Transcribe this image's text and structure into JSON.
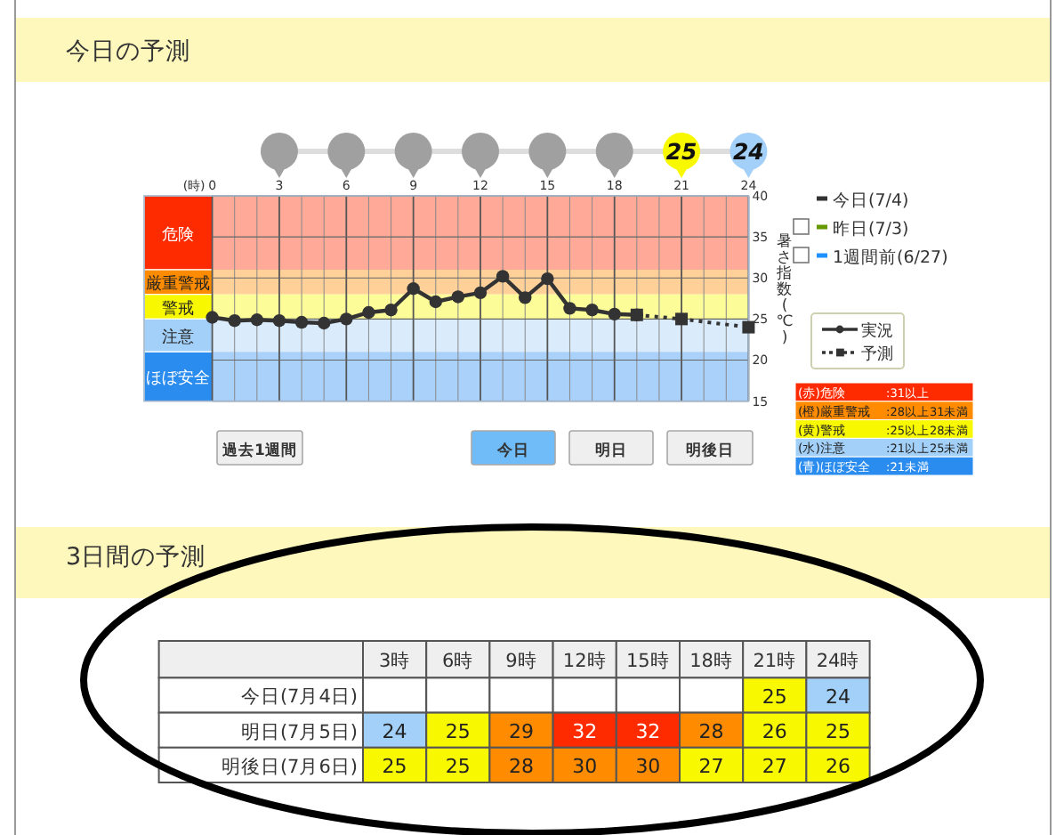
{
  "chart_data": [
    {
      "type": "line",
      "title": "今日の予測",
      "xlabel": "(時)",
      "ylabel": "暑さ指数(℃)",
      "x": [
        0,
        1,
        2,
        3,
        4,
        5,
        6,
        7,
        8,
        9,
        10,
        11,
        12,
        13,
        14,
        15,
        16,
        17,
        18,
        19
      ],
      "series": [
        {
          "name": "実況",
          "color": "#333333",
          "values": [
            25.2,
            24.8,
            24.9,
            24.8,
            24.6,
            24.5,
            25.0,
            25.8,
            26.1,
            28.7,
            27.1,
            27.7,
            28.2,
            30.2,
            27.6,
            29.9,
            26.3,
            26.1,
            25.6,
            25.5
          ],
          "marker": "circle",
          "line_style": "solid"
        },
        {
          "name": "予測",
          "color": "#333333",
          "x": [
            19,
            21,
            24
          ],
          "values": [
            25.5,
            25,
            24
          ],
          "marker": "square",
          "line_style": "dotted"
        },
        {
          "name": "昨日(7/3)",
          "color": "#669900",
          "values": [
            null,
            null,
            null,
            null,
            null,
            null,
            null,
            null,
            null,
            null,
            null,
            null,
            null,
            null,
            null,
            null,
            null,
            null,
            null,
            null
          ]
        },
        {
          "name": "1週間前(6/27)",
          "color": "#1e90ff",
          "values": [
            null,
            null,
            null,
            null,
            null,
            null,
            null,
            null,
            null,
            null,
            null,
            null,
            null,
            null,
            null,
            null,
            null,
            null,
            null,
            null
          ]
        }
      ],
      "xlim": [
        0,
        24
      ],
      "xticks": [
        0,
        {
          "value": 1,
          "label": null
        },
        {
          "value": 2,
          "label": null
        },
        3,
        {
          "value": 4,
          "label": null
        },
        {
          "value": 5,
          "label": null
        },
        6,
        {
          "value": 7,
          "label": null
        },
        {
          "value": 8,
          "label": null
        },
        9,
        {
          "value": 10,
          "label": null
        },
        {
          "value": 11,
          "label": null
        },
        12,
        {
          "value": 13,
          "label": null
        },
        {
          "value": 14,
          "label": null
        },
        15,
        {
          "value": 16,
          "label": null
        },
        {
          "value": 17,
          "label": null
        },
        18,
        {
          "value": 19,
          "label": null
        },
        {
          "value": 20,
          "label": null
        },
        21,
        {
          "value": 22,
          "label": null
        },
        {
          "value": 23,
          "label": null
        },
        24
      ],
      "ylim": [
        15,
        40
      ],
      "yticks": [
        15,
        20,
        25,
        30,
        35,
        40
      ],
      "grid": true,
      "legend": "right",
      "bands": [
        {
          "axis": "y",
          "from": 31,
          "to": 40,
          "label": "危険",
          "color": "#ffaa99"
        },
        {
          "axis": "y",
          "from": 28,
          "to": 31,
          "label": "厳重警戒",
          "color": "#ffd199"
        },
        {
          "axis": "y",
          "from": 25,
          "to": 28,
          "label": "警戒",
          "color": "#fcfc99"
        },
        {
          "axis": "y",
          "from": 21,
          "to": 25,
          "label": "注意",
          "color": "#daecfc"
        },
        {
          "axis": "y",
          "from": 15,
          "to": 21,
          "label": "ほぼ安全",
          "color": "#aad1f9"
        }
      ],
      "annotations": [
        "今日(7/4)",
        "過去1週間",
        "今日",
        "明日",
        "明後日",
        "(赤)危険",
        ":31以上",
        "(橙)厳重警戒",
        ":28以上31未満",
        "(黄)警戒",
        ":25以上28未満",
        "(水)注意",
        ":21以上25未満",
        "(青)ほぼ安全",
        ":21未満",
        "25",
        "24"
      ]
    },
    {
      "type": "heatmap",
      "title": "3日間の予測",
      "categories": [
        "3時",
        "6時",
        "9時",
        "12時",
        "15時",
        "18時",
        "21時",
        "24時"
      ],
      "y_categories": [
        "今日(7月4日)",
        "明日(7月5日)",
        "明後日(7月6日)"
      ],
      "cells": [
        [
          null,
          null,
          null,
          null,
          null,
          null,
          25,
          24
        ],
        [
          24,
          25,
          29,
          32,
          32,
          28,
          26,
          25
        ],
        [
          25,
          25,
          28,
          30,
          30,
          27,
          27,
          26
        ]
      ],
      "data_labels": true
    }
  ]
}
